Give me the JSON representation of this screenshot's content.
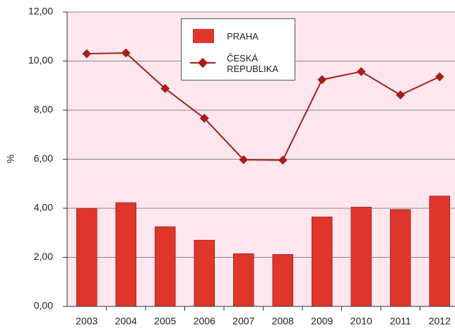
{
  "chart_data": {
    "type": "bar",
    "line_type": "line",
    "categories": [
      "2003",
      "2004",
      "2005",
      "2006",
      "2007",
      "2008",
      "2009",
      "2010",
      "2011",
      "2012"
    ],
    "series": [
      {
        "name": "PRAHA",
        "type": "bar",
        "color": "#e0352b",
        "values": [
          4.0,
          4.23,
          3.25,
          2.7,
          2.15,
          2.12,
          3.65,
          4.05,
          3.95,
          4.5
        ]
      },
      {
        "name": "ČESKÁ REPUBLIKA",
        "type": "line",
        "color": "#a51f18",
        "values": [
          10.3,
          10.33,
          8.88,
          7.67,
          5.98,
          5.96,
          9.24,
          9.57,
          8.62,
          9.36
        ]
      }
    ],
    "y_label": "%",
    "ylim": [
      0,
      12
    ],
    "yticks": [
      {
        "value": 0,
        "label": "0,00"
      },
      {
        "value": 2,
        "label": "2,00"
      },
      {
        "value": 4,
        "label": "4,00"
      },
      {
        "value": 6,
        "label": "6,00"
      },
      {
        "value": 8,
        "label": "8,00"
      },
      {
        "value": 10,
        "label": "10,00"
      },
      {
        "value": 12,
        "label": "12,00"
      }
    ],
    "grid": true,
    "legend": "top"
  }
}
